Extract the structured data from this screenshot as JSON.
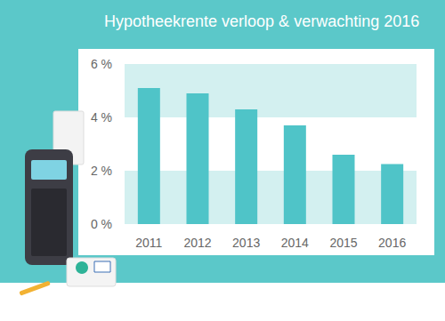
{
  "chart_data": {
    "type": "bar",
    "title": "Hypotheekrente verloop & verwachting 2016",
    "categories": [
      "2011",
      "2012",
      "2013",
      "2014",
      "2015",
      "2016"
    ],
    "values": [
      5.1,
      4.9,
      4.3,
      3.7,
      2.6,
      2.25
    ],
    "color": "#4fc4c8",
    "ylim": [
      0,
      6
    ],
    "yticks": [
      {
        "value": 0,
        "label": "0 %"
      },
      {
        "value": 2,
        "label": "2 %"
      },
      {
        "value": 4,
        "label": "4 %"
      },
      {
        "value": 6,
        "label": "6 %"
      }
    ],
    "grid": true
  }
}
